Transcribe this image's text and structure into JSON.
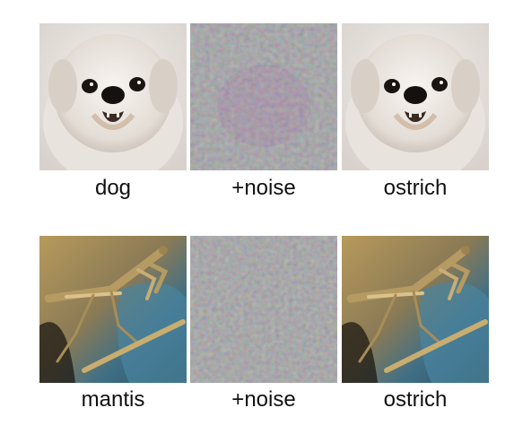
{
  "rows": [
    {
      "labels": [
        "dog",
        "+noise",
        "ostrich"
      ]
    },
    {
      "labels": [
        "mantis",
        "+noise",
        "ostrich"
      ]
    }
  ],
  "colors": {
    "background": "#ffffff",
    "noise_gray": "#8f8f8f",
    "dog_fur": "#ece7e2",
    "mantis_body": "#b59a62",
    "mantis_bg_blue": "#3f6f86",
    "mantis_bg_tan": "#b79a5c"
  },
  "icons": [
    "dog-photo",
    "noise-pattern",
    "mantis-photo"
  ]
}
